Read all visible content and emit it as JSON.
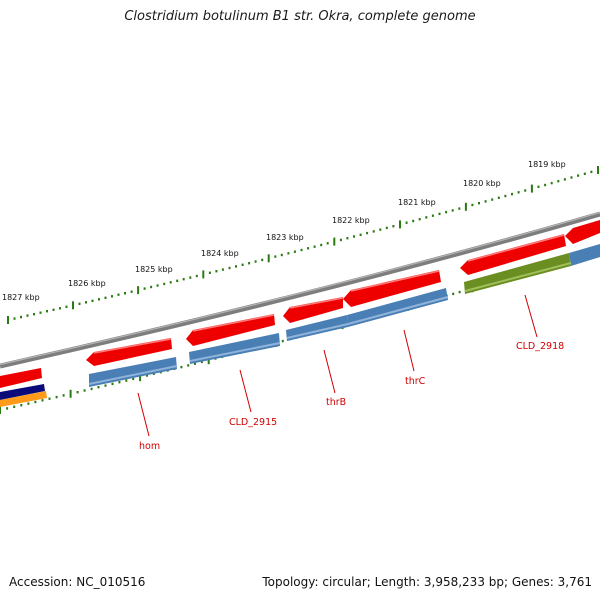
{
  "title": "Clostridium botulinum B1 str. Okra, complete genome",
  "footer": {
    "accession": "Accession: NC_010516",
    "summary": "Topology: circular; Length: 3,958,233 bp; Genes: 3,761"
  },
  "ruler": {
    "labels": [
      "1827 kbp",
      "1826 kbp",
      "1825 kbp",
      "1824 kbp",
      "1823 kbp",
      "1822 kbp",
      "1821 kbp",
      "1820 kbp",
      "1819 kbp"
    ]
  },
  "genes": {
    "labels": [
      "hom",
      "CLD_2915",
      "thrB",
      "thrC",
      "CLD_2918"
    ]
  },
  "colors": {
    "backbone": "#808080",
    "feature_red": "#ee0000",
    "feature_blue": "#4a7fb5",
    "feature_green": "#6b8e23",
    "feature_navy": "#0a0a7a",
    "feature_orange": "#ff9a1a",
    "tick_green": "#2a7a12",
    "label_red": "#d00000"
  }
}
